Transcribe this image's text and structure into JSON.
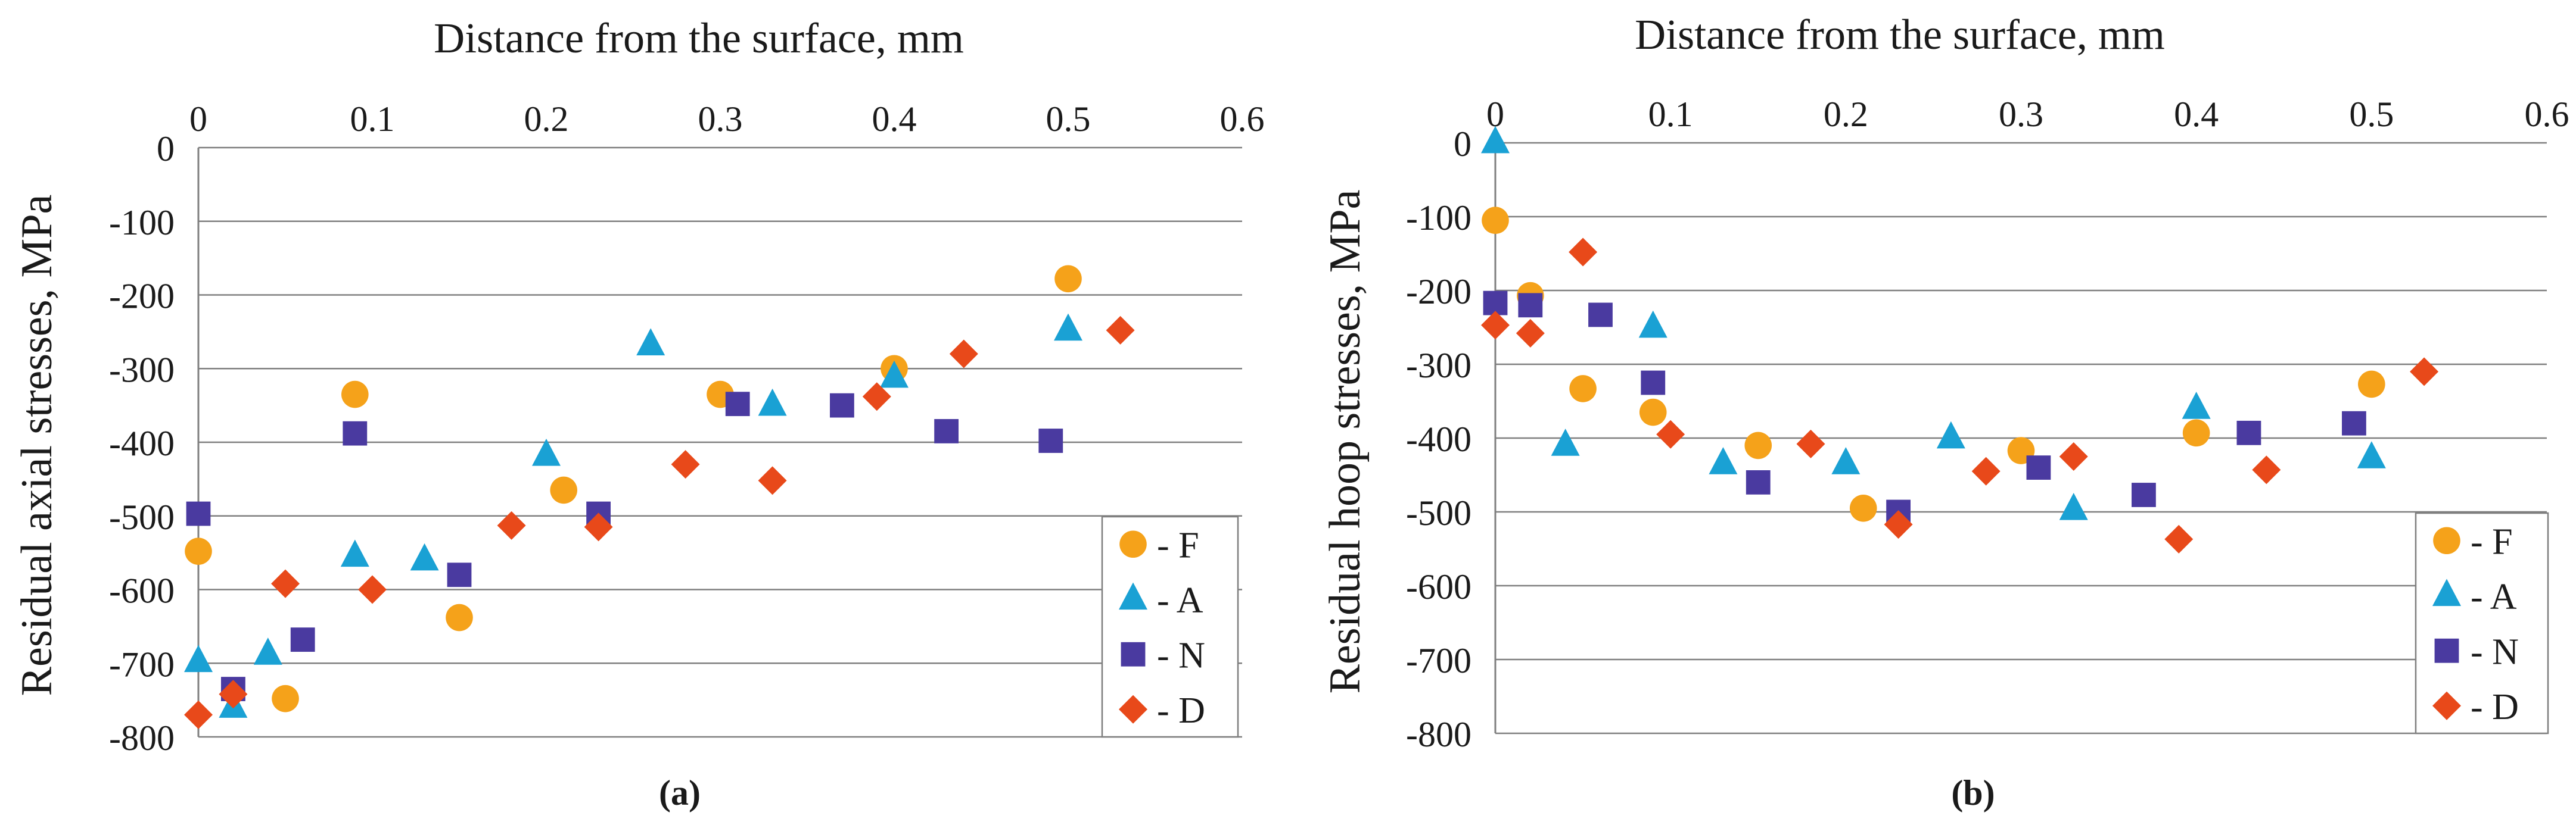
{
  "chart_data": [
    {
      "type": "scatter",
      "panel_label": "(a)",
      "xlabel": "Distance from the surface, mm",
      "ylabel": "Residual axial stresses, MPa",
      "xlim": [
        0,
        0.6
      ],
      "ylim": [
        -800,
        0
      ],
      "x_ticks": [
        "0",
        "0.1",
        "0.2",
        "0.3",
        "0.4",
        "0.5",
        "0.6"
      ],
      "y_ticks": [
        "0",
        "-100",
        "-200",
        "-300",
        "-400",
        "-500",
        "-600",
        "-700",
        "-800"
      ],
      "grid": true,
      "legend_position": "bottom-right",
      "series": [
        {
          "name": "- F",
          "marker": "circle",
          "color": "#f5a21a",
          "points": [
            [
              0.0,
              -548
            ],
            [
              0.05,
              -748
            ],
            [
              0.09,
              -335
            ],
            [
              0.15,
              -638
            ],
            [
              0.21,
              -465
            ],
            [
              0.3,
              -335
            ],
            [
              0.4,
              -300
            ],
            [
              0.5,
              -178
            ]
          ]
        },
        {
          "name": "- A",
          "marker": "triangle",
          "color": "#1aa1d4",
          "points": [
            [
              0.0,
              -698
            ],
            [
              0.02,
              -760
            ],
            [
              0.04,
              -688
            ],
            [
              0.09,
              -555
            ],
            [
              0.13,
              -560
            ],
            [
              0.2,
              -418
            ],
            [
              0.26,
              -268
            ],
            [
              0.33,
              -350
            ],
            [
              0.4,
              -312
            ],
            [
              0.5,
              -248
            ]
          ]
        },
        {
          "name": "- N",
          "marker": "square",
          "color": "#4a3aa0",
          "points": [
            [
              0.0,
              -497
            ],
            [
              0.02,
              -735
            ],
            [
              0.06,
              -668
            ],
            [
              0.09,
              -388
            ],
            [
              0.15,
              -580
            ],
            [
              0.23,
              -497
            ],
            [
              0.31,
              -348
            ],
            [
              0.37,
              -350
            ],
            [
              0.43,
              -385
            ],
            [
              0.49,
              -398
            ]
          ]
        },
        {
          "name": "- D",
          "marker": "diamond",
          "color": "#e8491a",
          "points": [
            [
              0.0,
              -770
            ],
            [
              0.02,
              -742
            ],
            [
              0.05,
              -592
            ],
            [
              0.1,
              -600
            ],
            [
              0.18,
              -513
            ],
            [
              0.23,
              -515
            ],
            [
              0.28,
              -430
            ],
            [
              0.33,
              -452
            ],
            [
              0.39,
              -338
            ],
            [
              0.44,
              -280
            ],
            [
              0.53,
              -248
            ]
          ]
        }
      ]
    },
    {
      "type": "scatter",
      "panel_label": "(b)",
      "xlabel": "Distance from the surface, mm",
      "ylabel": "Residual hoop stresses, MPa",
      "xlim": [
        0,
        0.6
      ],
      "ylim": [
        -800,
        0
      ],
      "x_ticks": [
        "0",
        "0.1",
        "0.2",
        "0.3",
        "0.4",
        "0.5",
        "0.6"
      ],
      "y_ticks": [
        "0",
        "-100",
        "-200",
        "-300",
        "-400",
        "-500",
        "-600",
        "-700",
        "-800"
      ],
      "grid": true,
      "legend_position": "bottom-right",
      "series": [
        {
          "name": "- F",
          "marker": "circle",
          "color": "#f5a21a",
          "points": [
            [
              0.0,
              -105
            ],
            [
              0.02,
              -207
            ],
            [
              0.05,
              -333
            ],
            [
              0.09,
              -365
            ],
            [
              0.15,
              -410
            ],
            [
              0.21,
              -495
            ],
            [
              0.3,
              -417
            ],
            [
              0.4,
              -393
            ],
            [
              0.5,
              -327
            ]
          ]
        },
        {
          "name": "- A",
          "marker": "triangle",
          "color": "#1aa1d4",
          "points": [
            [
              0.0,
              0
            ],
            [
              0.04,
              -410
            ],
            [
              0.09,
              -250
            ],
            [
              0.13,
              -435
            ],
            [
              0.2,
              -435
            ],
            [
              0.26,
              -400
            ],
            [
              0.33,
              -497
            ],
            [
              0.4,
              -360
            ],
            [
              0.5,
              -427
            ]
          ]
        },
        {
          "name": "- N",
          "marker": "square",
          "color": "#4a3aa0",
          "points": [
            [
              0.0,
              -217
            ],
            [
              0.02,
              -220
            ],
            [
              0.06,
              -233
            ],
            [
              0.09,
              -325
            ],
            [
              0.15,
              -460
            ],
            [
              0.23,
              -500
            ],
            [
              0.31,
              -440
            ],
            [
              0.37,
              -477
            ],
            [
              0.43,
              -393
            ],
            [
              0.49,
              -380
            ]
          ]
        },
        {
          "name": "- D",
          "marker": "diamond",
          "color": "#e8491a",
          "points": [
            [
              0.0,
              -247
            ],
            [
              0.02,
              -258
            ],
            [
              0.05,
              -148
            ],
            [
              0.1,
              -395
            ],
            [
              0.18,
              -408
            ],
            [
              0.23,
              -517
            ],
            [
              0.28,
              -445
            ],
            [
              0.33,
              -425
            ],
            [
              0.39,
              -537
            ],
            [
              0.44,
              -443
            ],
            [
              0.53,
              -310
            ]
          ]
        }
      ]
    }
  ]
}
